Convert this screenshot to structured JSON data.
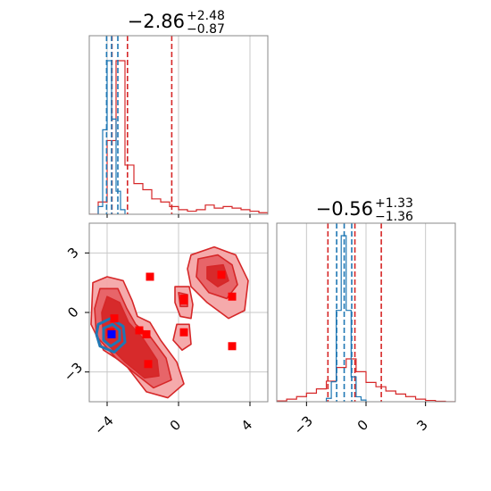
{
  "colors": {
    "red": "#d62728",
    "blue": "#1f77b4",
    "marker_red": "#ff0000",
    "marker_blue": "#0000ff",
    "grid": "#c8c8c8",
    "frame": "#888888"
  },
  "chart_data": [
    {
      "type": "histogram",
      "panel": "marginal-x",
      "title": {
        "median": "−2.86",
        "plus": "+2.48",
        "minus": "−0.87"
      },
      "xlim": [
        -5,
        5
      ],
      "xticks": [
        "−4",
        "0",
        "4"
      ],
      "grid": true,
      "series": [
        {
          "color": "red",
          "bin_edges": [
            -5,
            -4.5,
            -4,
            -3.5,
            -3,
            -2.5,
            -2,
            -1.5,
            -1,
            -0.5,
            0,
            0.5,
            1,
            1.5,
            2,
            2.5,
            3,
            3.5,
            4,
            4.5,
            5
          ],
          "density": [
            0.0,
            0.08,
            0.48,
            1.0,
            0.32,
            0.2,
            0.16,
            0.1,
            0.08,
            0.05,
            0.03,
            0.02,
            0.03,
            0.06,
            0.04,
            0.05,
            0.04,
            0.03,
            0.02,
            0.01
          ],
          "quantiles": [
            -3.73,
            -2.86,
            -0.38
          ]
        },
        {
          "color": "blue",
          "bin_edges": [
            -4.5,
            -4.25,
            -4,
            -3.75,
            -3.5,
            -3.25,
            -3
          ],
          "density": [
            0.05,
            0.55,
            1.0,
            0.62,
            0.15,
            0.03
          ],
          "quantiles": [
            -4.03,
            -3.75,
            -3.4
          ]
        }
      ]
    },
    {
      "type": "histogram",
      "panel": "marginal-y",
      "title": {
        "median": "−0.56",
        "plus": "+1.33",
        "minus": "−1.36"
      },
      "xlim": [
        -4.5,
        4.5
      ],
      "xticks": [
        "−3",
        "0",
        "3"
      ],
      "grid": true,
      "series": [
        {
          "color": "red",
          "bin_edges": [
            -4.5,
            -4,
            -3.5,
            -3,
            -2.5,
            -2,
            -1.5,
            -1,
            -0.5,
            0,
            0.5,
            1,
            1.5,
            2,
            2.5,
            3,
            3.5,
            4,
            4.5
          ],
          "density": [
            0.02,
            0.06,
            0.12,
            0.2,
            0.3,
            0.48,
            0.8,
            1.0,
            0.7,
            0.45,
            0.35,
            0.25,
            0.18,
            0.12,
            0.06,
            0.03,
            0.01,
            0.0
          ],
          "quantiles": [
            -1.92,
            -0.56,
            0.77
          ]
        },
        {
          "color": "blue",
          "bin_edges": [
            -2,
            -1.75,
            -1.5,
            -1.25,
            -1,
            -0.75,
            -0.5,
            -0.25,
            0
          ],
          "density": [
            0.02,
            0.12,
            0.55,
            1.0,
            0.55,
            0.15,
            0.03,
            0.01
          ],
          "quantiles": [
            -1.48,
            -1.1,
            -0.72
          ]
        }
      ]
    },
    {
      "type": "scatter",
      "panel": "joint",
      "xlim": [
        -5,
        5
      ],
      "ylim": [
        -4.5,
        4.5
      ],
      "xticks": [
        "−4",
        "0",
        "4"
      ],
      "yticks": [
        "−3",
        "0",
        "3"
      ],
      "grid": true,
      "series": [
        {
          "marker": "square",
          "color": "marker_red",
          "points": [
            [
              -3.6,
              -0.3
            ],
            [
              -3.8,
              -1.0
            ],
            [
              -2.2,
              -0.9
            ],
            [
              -1.8,
              -1.1
            ],
            [
              -1.6,
              1.8
            ],
            [
              0.3,
              0.7
            ],
            [
              0.3,
              0.6
            ],
            [
              0.3,
              -1.0
            ],
            [
              -1.7,
              -2.6
            ],
            [
              2.4,
              1.9
            ],
            [
              3.0,
              0.8
            ],
            [
              3.0,
              -1.7
            ]
          ]
        },
        {
          "marker": "square",
          "color": "marker_blue",
          "points": [
            [
              -3.75,
              -1.1
            ]
          ]
        }
      ],
      "contours": [
        {
          "color": "red",
          "level": 1,
          "polygons": [
            [
              [
                -4.8,
                1.5
              ],
              [
                -4.0,
                1.8
              ],
              [
                -3.1,
                1.6
              ],
              [
                -2.6,
                0.6
              ],
              [
                -2.3,
                -0.2
              ],
              [
                -1.6,
                -0.5
              ],
              [
                -1.0,
                -1.4
              ],
              [
                -0.1,
                -2.5
              ],
              [
                0.3,
                -3.6
              ],
              [
                -0.6,
                -4.3
              ],
              [
                -1.8,
                -4.0
              ],
              [
                -3.0,
                -2.6
              ],
              [
                -4.2,
                -1.9
              ],
              [
                -4.9,
                -0.6
              ]
            ],
            [
              [
                0.7,
                2.9
              ],
              [
                2.0,
                3.3
              ],
              [
                3.2,
                2.9
              ],
              [
                3.9,
                1.6
              ],
              [
                3.7,
                0.1
              ],
              [
                2.8,
                -0.3
              ],
              [
                1.6,
                0.5
              ],
              [
                0.7,
                1.3
              ],
              [
                0.5,
                2.2
              ]
            ],
            [
              [
                -0.2,
                1.3
              ],
              [
                0.6,
                1.3
              ],
              [
                0.8,
                0.4
              ],
              [
                0.7,
                -0.3
              ],
              [
                0.1,
                -0.2
              ],
              [
                -0.2,
                0.5
              ]
            ],
            [
              [
                -0.1,
                -0.6
              ],
              [
                0.6,
                -0.6
              ],
              [
                0.7,
                -1.6
              ],
              [
                0.2,
                -1.9
              ],
              [
                -0.3,
                -1.4
              ]
            ]
          ]
        },
        {
          "color": "red",
          "level": 2,
          "polygons": [
            [
              [
                -4.4,
                1.2
              ],
              [
                -3.4,
                1.2
              ],
              [
                -2.9,
                0.2
              ],
              [
                -2.4,
                -0.6
              ],
              [
                -1.6,
                -1.2
              ],
              [
                -0.7,
                -2.3
              ],
              [
                -0.4,
                -3.4
              ],
              [
                -1.4,
                -3.8
              ],
              [
                -2.4,
                -3.1
              ],
              [
                -3.5,
                -2.3
              ],
              [
                -4.6,
                -1.2
              ],
              [
                -4.7,
                0.2
              ]
            ],
            [
              [
                1.1,
                2.7
              ],
              [
                2.2,
                2.9
              ],
              [
                3.0,
                2.4
              ],
              [
                3.3,
                1.4
              ],
              [
                2.7,
                0.7
              ],
              [
                1.7,
                1.0
              ],
              [
                1.0,
                1.8
              ]
            ],
            [
              [
                0.0,
                1.0
              ],
              [
                0.5,
                0.9
              ],
              [
                0.5,
                0.3
              ],
              [
                0.1,
                0.3
              ]
            ]
          ]
        },
        {
          "color": "red",
          "level": 3,
          "polygons": [
            [
              [
                -4.0,
                0.8
              ],
              [
                -3.3,
                0.5
              ],
              [
                -2.8,
                -0.5
              ],
              [
                -2.0,
                -1.3
              ],
              [
                -1.2,
                -2.4
              ],
              [
                -1.1,
                -3.2
              ],
              [
                -1.9,
                -3.3
              ],
              [
                -3.0,
                -2.5
              ],
              [
                -4.2,
                -1.4
              ],
              [
                -4.3,
                0.0
              ]
            ],
            [
              [
                1.6,
                2.3
              ],
              [
                2.5,
                2.4
              ],
              [
                2.8,
                1.6
              ],
              [
                2.2,
                1.3
              ],
              [
                1.6,
                1.7
              ]
            ]
          ]
        },
        {
          "color": "blue",
          "level": 1,
          "polygons": [
            [
              [
                -4.5,
                -0.6
              ],
              [
                -3.8,
                -0.3
              ],
              [
                -3.1,
                -0.7
              ],
              [
                -3.0,
                -1.5
              ],
              [
                -3.6,
                -2.0
              ],
              [
                -4.4,
                -1.7
              ],
              [
                -4.6,
                -1.1
              ]
            ]
          ]
        },
        {
          "color": "blue",
          "level": 2,
          "polygons": [
            [
              [
                -4.2,
                -0.8
              ],
              [
                -3.7,
                -0.6
              ],
              [
                -3.3,
                -0.9
              ],
              [
                -3.3,
                -1.4
              ],
              [
                -3.8,
                -1.7
              ],
              [
                -4.2,
                -1.4
              ]
            ]
          ]
        }
      ]
    }
  ]
}
